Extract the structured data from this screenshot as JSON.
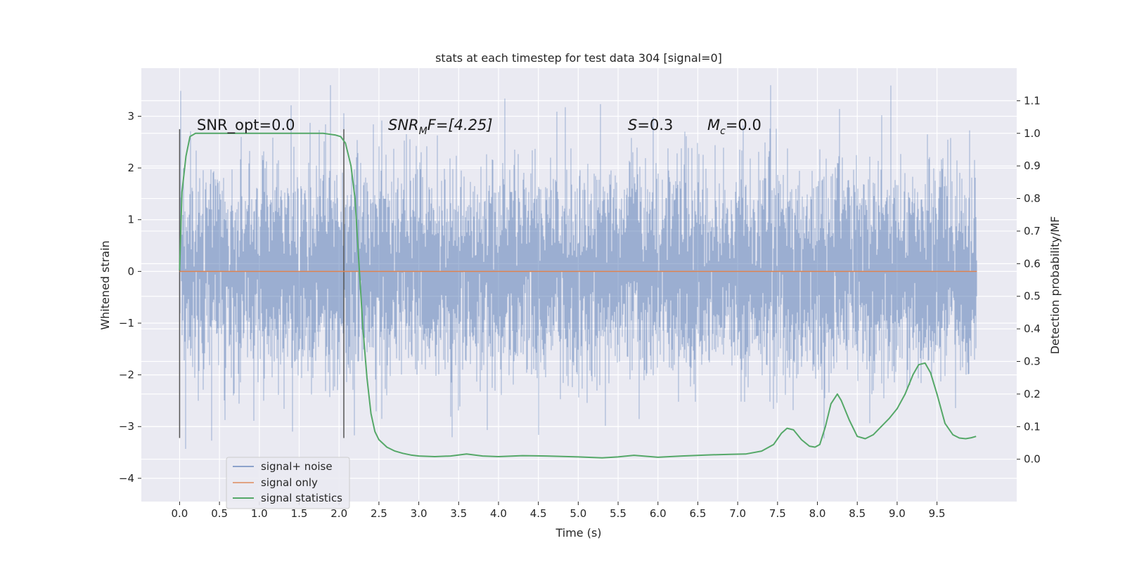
{
  "chart_data": {
    "type": "line",
    "title": "stats at each timestep for test data 304 [signal=0]",
    "xlabel": "Time (s)",
    "ylabel": "Whitened strain",
    "ylabel_right": "Detection probability/MF",
    "xlim": [
      -0.48,
      10.5
    ],
    "ylim": [
      -4.45,
      3.93
    ],
    "ylim_right": [
      -0.13,
      1.2
    ],
    "x_ticks": [
      "0.0",
      "0.5",
      "1.0",
      "1.5",
      "2.0",
      "2.5",
      "3.0",
      "3.5",
      "4.0",
      "4.5",
      "5.0",
      "5.5",
      "6.0",
      "6.5",
      "7.0",
      "7.5",
      "8.0",
      "8.5",
      "9.0",
      "9.5"
    ],
    "y_ticks": [
      "3",
      "2",
      "1",
      "0",
      "−1",
      "−2",
      "−3",
      "−4"
    ],
    "y_right_ticks": [
      "1.1",
      "1.0",
      "0.9",
      "0.8",
      "0.7",
      "0.6",
      "0.5",
      "0.4",
      "0.3",
      "0.2",
      "0.1",
      "0.0"
    ],
    "grid": true,
    "legend_position": "lower-left",
    "annotations": {
      "snr_opt": "SNR_opt=0.0",
      "snr_mf_main": "SNR",
      "snr_mf_sub": "M",
      "snr_mf_rest": "F=[4.25]",
      "s_main": "S",
      "s_rest": "=0.3",
      "mc_main": "M",
      "mc_sub": "c",
      "mc_rest": "=0.0"
    },
    "window_markers_x": [
      0.0,
      2.06
    ],
    "series": [
      {
        "name": "signal+ noise",
        "color": "#4c72b0",
        "x_range": [
          0.0,
          10.0
        ],
        "description_values": "noise band roughly between -2.5 and 2.5 with spikes up to 3.6 and down to -4.05"
      },
      {
        "name": "signal only",
        "color": "#dd8452",
        "x": [
          0.0,
          10.0
        ],
        "y": [
          0.0,
          0.0
        ]
      },
      {
        "name": "signal statistics",
        "color": "#55a868",
        "x": [
          0.0,
          0.03,
          0.08,
          0.13,
          0.2,
          0.3,
          0.5,
          0.8,
          1.0,
          1.2,
          1.5,
          1.8,
          1.95,
          2.02,
          2.08,
          2.15,
          2.2,
          2.25,
          2.3,
          2.35,
          2.4,
          2.45,
          2.5,
          2.6,
          2.7,
          2.8,
          2.9,
          3.0,
          3.2,
          3.4,
          3.6,
          3.8,
          4.0,
          4.3,
          4.6,
          5.0,
          5.3,
          5.5,
          5.7,
          6.0,
          6.3,
          6.6,
          6.9,
          7.1,
          7.3,
          7.45,
          7.55,
          7.62,
          7.7,
          7.8,
          7.9,
          7.97,
          8.03,
          8.1,
          8.17,
          8.25,
          8.3,
          8.4,
          8.5,
          8.6,
          8.7,
          8.8,
          8.9,
          9.0,
          9.1,
          9.2,
          9.27,
          9.35,
          9.42,
          9.5,
          9.6,
          9.7,
          9.78,
          9.86,
          9.93,
          9.99
        ],
        "y": [
          0.58,
          0.82,
          0.93,
          0.99,
          1.0,
          1.0,
          1.0,
          1.0,
          1.0,
          1.0,
          1.0,
          1.0,
          0.995,
          0.99,
          0.97,
          0.9,
          0.8,
          0.6,
          0.4,
          0.25,
          0.14,
          0.085,
          0.06,
          0.037,
          0.025,
          0.018,
          0.013,
          0.01,
          0.008,
          0.01,
          0.016,
          0.01,
          0.008,
          0.011,
          0.01,
          0.007,
          0.004,
          0.007,
          0.012,
          0.006,
          0.01,
          0.013,
          0.015,
          0.016,
          0.025,
          0.045,
          0.08,
          0.095,
          0.09,
          0.06,
          0.04,
          0.037,
          0.045,
          0.1,
          0.17,
          0.2,
          0.18,
          0.12,
          0.07,
          0.063,
          0.075,
          0.1,
          0.125,
          0.155,
          0.2,
          0.26,
          0.29,
          0.295,
          0.265,
          0.2,
          0.11,
          0.075,
          0.065,
          0.063,
          0.066,
          0.07
        ]
      }
    ]
  }
}
